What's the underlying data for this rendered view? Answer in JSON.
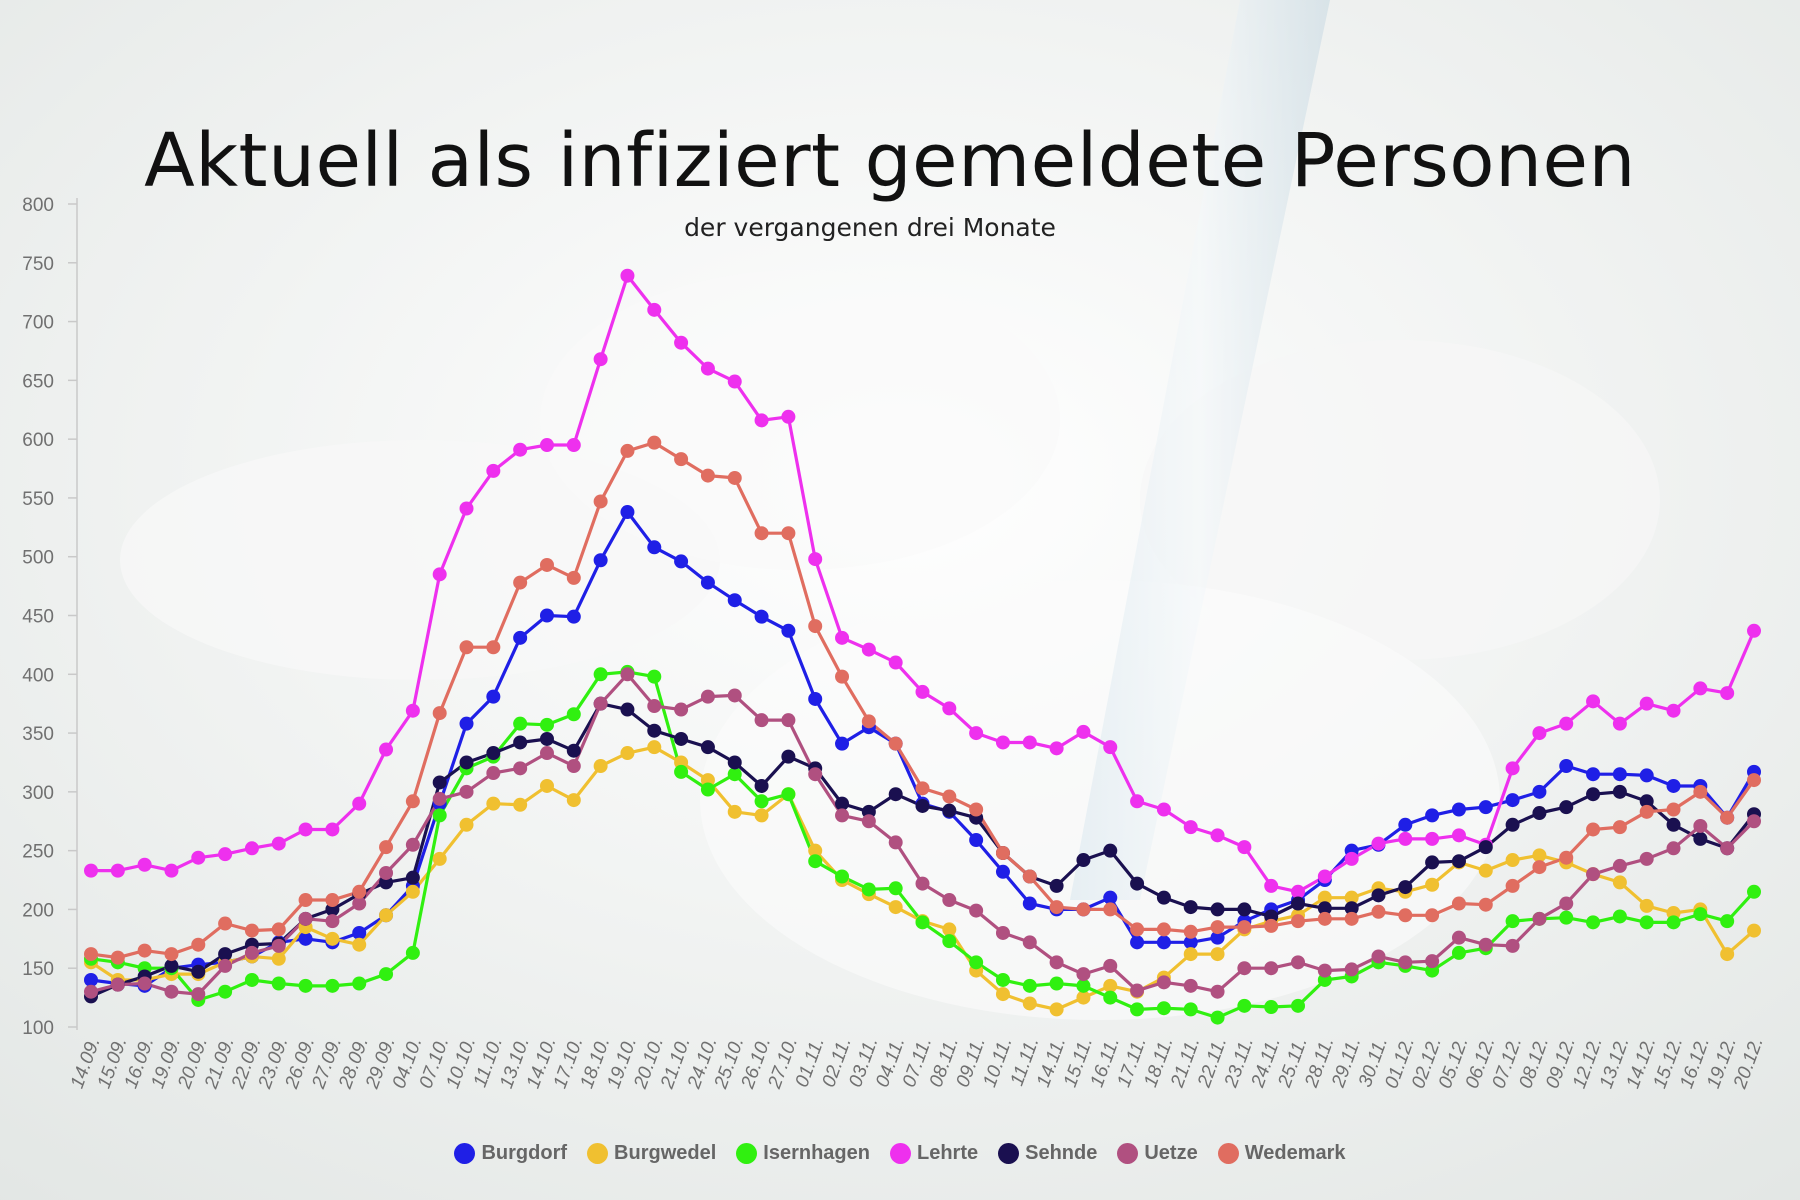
{
  "chart_data": {
    "type": "line",
    "title": "Aktuell als infiziert gemeldete Personen",
    "subtitle": "der vergangenen drei Monate",
    "ylim": [
      100,
      800
    ],
    "yticks": [
      100,
      150,
      200,
      250,
      300,
      350,
      400,
      450,
      500,
      550,
      600,
      650,
      700,
      750,
      800
    ],
    "grid": false,
    "legend_position": "bottom-center",
    "categories": [
      "14.09.",
      "15.09.",
      "16.09.",
      "19.09.",
      "20.09.",
      "21.09.",
      "22.09.",
      "23.09.",
      "26.09.",
      "27.09.",
      "28.09.",
      "29.09.",
      "04.10.",
      "07.10.",
      "10.10.",
      "11.10.",
      "13.10.",
      "14.10.",
      "17.10.",
      "18.10.",
      "19.10.",
      "20.10.",
      "21.10.",
      "24.10.",
      "25.10.",
      "26.10.",
      "27.10.",
      "01.11.",
      "02.11.",
      "03.11.",
      "04.11.",
      "07.11.",
      "08.11.",
      "09.11.",
      "10.11.",
      "11.11.",
      "14.11.",
      "15.11.",
      "16.11.",
      "17.11.",
      "18.11.",
      "21.11.",
      "22.11.",
      "23.11.",
      "24.11.",
      "25.11.",
      "28.11.",
      "29.11.",
      "30.11.",
      "01.12.",
      "02.12.",
      "05.12.",
      "06.12.",
      "07.12.",
      "08.12.",
      "09.12.",
      "12.12.",
      "13.12.",
      "14.12.",
      "15.12.",
      "16.12.",
      "19.12.",
      "20.12."
    ],
    "series": [
      {
        "name": "Burgdorf",
        "color": "#1f1fe6",
        "values": [
          140,
          137,
          135,
          150,
          153,
          155,
          160,
          172,
          175,
          172,
          180,
          195,
          220,
          290,
          358,
          381,
          431,
          450,
          449,
          497,
          538,
          508,
          496,
          478,
          463,
          449,
          437,
          379,
          341,
          355,
          341,
          290,
          283,
          259,
          232,
          205,
          200,
          200,
          210,
          172,
          172,
          172,
          176,
          190,
          200,
          208,
          225,
          250,
          255,
          272,
          280,
          285,
          287,
          293,
          300,
          322,
          315,
          315,
          314,
          305,
          305,
          278,
          317
        ]
      },
      {
        "name": "Burgwedel",
        "color": "#f0c030",
        "values": [
          155,
          140,
          140,
          145,
          145,
          155,
          160,
          158,
          185,
          175,
          170,
          195,
          215,
          243,
          272,
          290,
          289,
          305,
          293,
          322,
          333,
          338,
          325,
          310,
          283,
          280,
          298,
          250,
          225,
          213,
          202,
          190,
          183,
          148,
          128,
          120,
          115,
          125,
          135,
          130,
          142,
          162,
          162,
          183,
          190,
          195,
          210,
          210,
          218,
          215,
          221,
          240,
          233,
          242,
          246,
          240,
          230,
          223,
          203,
          197,
          200,
          162,
          182
        ]
      },
      {
        "name": "Isernhagen",
        "color": "#30f010",
        "values": [
          158,
          155,
          150,
          150,
          123,
          130,
          140,
          137,
          135,
          135,
          137,
          145,
          163,
          280,
          320,
          330,
          358,
          357,
          366,
          400,
          402,
          398,
          317,
          302,
          315,
          292,
          298,
          241,
          228,
          217,
          218,
          189,
          173,
          155,
          140,
          135,
          137,
          135,
          125,
          115,
          116,
          115,
          108,
          118,
          117,
          118,
          140,
          143,
          155,
          152,
          148,
          163,
          167,
          190,
          192,
          193,
          189,
          194,
          189,
          189,
          196,
          190,
          215
        ]
      },
      {
        "name": "Lehrte",
        "color": "#ee30ee",
        "values": [
          233,
          233,
          238,
          233,
          244,
          247,
          252,
          256,
          268,
          268,
          290,
          336,
          369,
          485,
          541,
          573,
          591,
          595,
          595,
          668,
          739,
          710,
          682,
          660,
          649,
          616,
          619,
          498,
          431,
          421,
          410,
          385,
          371,
          350,
          342,
          342,
          337,
          351,
          338,
          292,
          285,
          270,
          263,
          253,
          220,
          215,
          228,
          243,
          256,
          260,
          260,
          263,
          255,
          320,
          350,
          358,
          377,
          358,
          375,
          369,
          388,
          384,
          437
        ]
      },
      {
        "name": "Sehnde",
        "color": "#1a1050",
        "values": [
          126,
          136,
          143,
          152,
          147,
          162,
          170,
          171,
          192,
          200,
          213,
          223,
          227,
          308,
          325,
          333,
          342,
          345,
          335,
          375,
          370,
          352,
          345,
          338,
          325,
          305,
          330,
          320,
          290,
          283,
          298,
          288,
          284,
          278,
          248,
          228,
          220,
          242,
          250,
          222,
          210,
          202,
          200,
          200,
          194,
          205,
          201,
          201,
          212,
          219,
          240,
          241,
          253,
          272,
          282,
          287,
          298,
          300,
          292,
          272,
          260,
          252,
          281
        ]
      },
      {
        "name": "Uetze",
        "color": "#b05080",
        "values": [
          130,
          136,
          137,
          130,
          128,
          152,
          163,
          169,
          192,
          190,
          205,
          231,
          255,
          294,
          300,
          316,
          320,
          333,
          322,
          375,
          400,
          373,
          370,
          381,
          382,
          361,
          361,
          315,
          280,
          275,
          257,
          222,
          208,
          199,
          180,
          172,
          155,
          145,
          152,
          131,
          138,
          135,
          130,
          150,
          150,
          155,
          148,
          149,
          160,
          155,
          156,
          176,
          170,
          169,
          192,
          205,
          230,
          237,
          243,
          252,
          271,
          252,
          275
        ]
      },
      {
        "name": "Wedemark",
        "color": "#e06d60",
        "values": [
          162,
          159,
          165,
          162,
          170,
          188,
          182,
          183,
          208,
          208,
          215,
          253,
          292,
          367,
          423,
          423,
          478,
          493,
          482,
          547,
          590,
          597,
          583,
          569,
          567,
          520,
          520,
          441,
          398,
          360,
          341,
          303,
          296,
          285,
          248,
          228,
          202,
          200,
          200,
          183,
          183,
          181,
          185,
          185,
          186,
          190,
          192,
          192,
          198,
          195,
          195,
          205,
          204,
          220,
          236,
          244,
          268,
          270,
          283,
          285,
          300,
          278,
          310
        ]
      }
    ]
  }
}
